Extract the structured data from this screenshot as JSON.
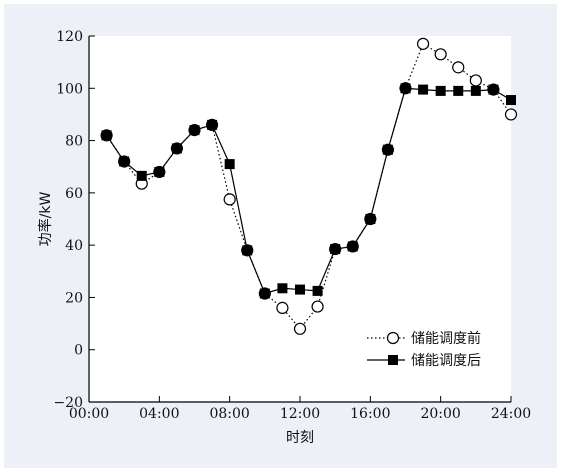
{
  "chart_data": {
    "type": "line",
    "title": "",
    "xlabel": "时刻",
    "ylabel": "功率/kW",
    "x_tick_labels": [
      "00:00",
      "04:00",
      "08:00",
      "12:00",
      "16:00",
      "20:00",
      "24:00"
    ],
    "x_ticks": [
      0,
      4,
      8,
      12,
      16,
      20,
      24
    ],
    "y_ticks": [
      -20,
      0,
      20,
      40,
      60,
      80,
      100,
      120
    ],
    "y_tick_labels": [
      "−20",
      "0",
      "20",
      "40",
      "60",
      "80",
      "100",
      "120"
    ],
    "xlim": [
      0,
      24
    ],
    "ylim": [
      -20,
      120
    ],
    "grid": false,
    "legend_position": "bottom-right",
    "x": [
      1,
      2,
      3,
      4,
      5,
      6,
      7,
      8,
      9,
      10,
      11,
      12,
      13,
      14,
      15,
      16,
      17,
      18,
      19,
      20,
      21,
      22,
      23,
      24
    ],
    "series": [
      {
        "name": "储能调度前",
        "marker": "open-circle",
        "line": "dotted",
        "color": "#000000",
        "values": [
          82,
          72,
          63.5,
          68,
          77,
          84,
          86,
          57.5,
          38,
          21.5,
          16,
          8,
          16.5,
          38.5,
          39.5,
          50,
          76.5,
          100,
          117,
          113,
          108,
          103,
          99.5,
          90
        ]
      },
      {
        "name": "储能调度后",
        "marker": "filled-square",
        "line": "solid",
        "color": "#000000",
        "values": [
          82,
          72,
          66.5,
          68,
          77,
          84,
          86,
          71,
          38,
          21.5,
          23.5,
          23,
          22.5,
          38.5,
          39.5,
          50,
          76.5,
          100,
          99.5,
          99,
          99,
          99,
          99.5,
          95.5
        ]
      }
    ]
  }
}
